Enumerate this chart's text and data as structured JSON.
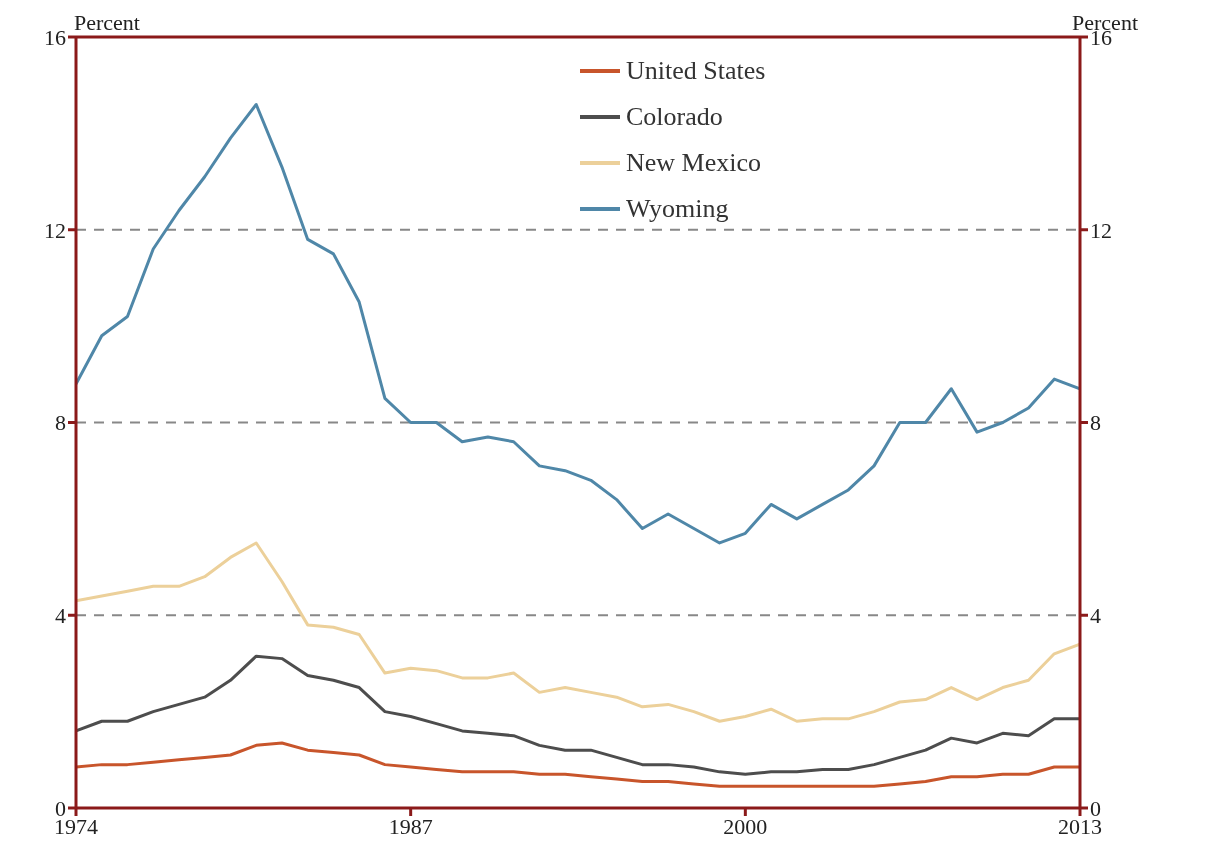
{
  "chart_data": {
    "type": "line",
    "ylabel": "Percent",
    "y2label": "Percent",
    "x": [
      1974,
      1975,
      1976,
      1977,
      1978,
      1979,
      1980,
      1981,
      1982,
      1983,
      1984,
      1985,
      1986,
      1987,
      1988,
      1989,
      1990,
      1991,
      1992,
      1993,
      1994,
      1995,
      1996,
      1997,
      1998,
      1999,
      2000,
      2001,
      2002,
      2003,
      2004,
      2005,
      2006,
      2007,
      2008,
      2009,
      2010,
      2011,
      2012,
      2013
    ],
    "series": [
      {
        "name": "United States",
        "color": "#c8552b",
        "values": [
          0.85,
          0.9,
          0.9,
          0.95,
          1.0,
          1.05,
          1.1,
          1.3,
          1.35,
          1.2,
          1.15,
          1.1,
          0.9,
          0.85,
          0.8,
          0.75,
          0.75,
          0.75,
          0.7,
          0.7,
          0.65,
          0.6,
          0.55,
          0.55,
          0.5,
          0.45,
          0.45,
          0.45,
          0.45,
          0.45,
          0.45,
          0.45,
          0.5,
          0.55,
          0.65,
          0.65,
          0.7,
          0.7,
          0.85,
          0.85
        ]
      },
      {
        "name": "Colorado",
        "color": "#4d4d4d",
        "values": [
          1.6,
          1.8,
          1.8,
          2.0,
          2.15,
          2.3,
          2.65,
          3.15,
          3.1,
          2.75,
          2.65,
          2.5,
          2.0,
          1.9,
          1.75,
          1.6,
          1.55,
          1.5,
          1.3,
          1.2,
          1.2,
          1.05,
          0.9,
          0.9,
          0.85,
          0.75,
          0.7,
          0.75,
          0.75,
          0.8,
          0.8,
          0.9,
          1.05,
          1.2,
          1.45,
          1.35,
          1.55,
          1.5,
          1.85,
          1.85
        ]
      },
      {
        "name": "New Mexico",
        "color": "#ecd09a",
        "values": [
          4.3,
          4.4,
          4.5,
          4.6,
          4.6,
          4.8,
          5.2,
          5.5,
          4.7,
          3.8,
          3.75,
          3.6,
          2.8,
          2.9,
          2.85,
          2.7,
          2.7,
          2.8,
          2.4,
          2.5,
          2.4,
          2.3,
          2.1,
          2.15,
          2.0,
          1.8,
          1.9,
          2.05,
          1.8,
          1.85,
          1.85,
          2.0,
          2.2,
          2.25,
          2.5,
          2.25,
          2.5,
          2.65,
          3.2,
          3.4
        ]
      },
      {
        "name": "Wyoming",
        "color": "#4f87a8",
        "values": [
          8.8,
          9.8,
          10.2,
          11.6,
          12.4,
          13.1,
          13.9,
          14.6,
          13.3,
          11.8,
          11.5,
          10.5,
          8.5,
          8.0,
          8.0,
          7.6,
          7.7,
          7.6,
          7.1,
          7.0,
          6.8,
          6.4,
          5.8,
          6.1,
          5.8,
          5.5,
          5.7,
          6.3,
          6.0,
          6.3,
          6.6,
          7.1,
          8.0,
          8.0,
          8.7,
          7.8,
          8.0,
          8.3,
          8.9,
          8.7
        ]
      }
    ],
    "xlim": [
      1974,
      2013
    ],
    "xticks": [
      1974,
      1987,
      2000,
      2013
    ],
    "ylim": [
      0,
      16
    ],
    "yticks": [
      0,
      4,
      8,
      12,
      16
    ],
    "y2lim": [
      0,
      16
    ],
    "y2ticks": [
      0,
      4,
      8,
      12,
      16
    ],
    "grid": "y",
    "legend": "top",
    "marker": "none",
    "line_style": "solid"
  }
}
